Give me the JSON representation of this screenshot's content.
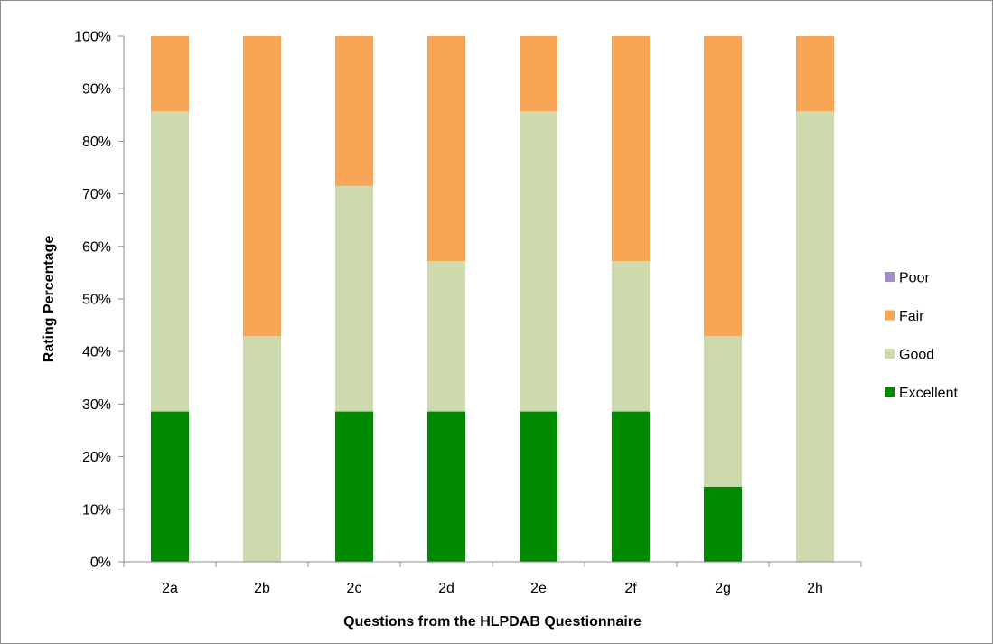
{
  "chart_data": {
    "type": "bar",
    "stacked": true,
    "title": "",
    "xlabel": "Questions from the HLPDAB Questionnaire",
    "ylabel": "Rating Percentage",
    "categories": [
      "2a",
      "2b",
      "2c",
      "2d",
      "2e",
      "2f",
      "2g",
      "2h"
    ],
    "ylim": [
      0,
      100
    ],
    "yticks": [
      0,
      10,
      20,
      30,
      40,
      50,
      60,
      70,
      80,
      90,
      100
    ],
    "ytick_labels": [
      "0%",
      "10%",
      "20%",
      "30%",
      "40%",
      "50%",
      "60%",
      "70%",
      "80%",
      "90%",
      "100%"
    ],
    "grid": false,
    "legend_position": "right",
    "series": [
      {
        "name": "Excellent",
        "color": "#008a00",
        "values": [
          28.6,
          0,
          28.6,
          28.6,
          28.6,
          28.6,
          14.3,
          0
        ]
      },
      {
        "name": "Good",
        "color": "#cddaae",
        "values": [
          57.1,
          42.9,
          42.9,
          28.6,
          57.1,
          28.6,
          28.6,
          85.7
        ]
      },
      {
        "name": "Fair",
        "color": "#f9a556",
        "values": [
          14.3,
          57.1,
          28.5,
          42.8,
          14.3,
          42.8,
          57.1,
          14.3
        ]
      },
      {
        "name": "Poor",
        "color": "#a78bd0",
        "values": [
          0,
          0,
          0,
          0,
          0,
          0,
          0,
          0
        ]
      }
    ],
    "legend_order": [
      "Poor",
      "Fair",
      "Good",
      "Excellent"
    ]
  }
}
